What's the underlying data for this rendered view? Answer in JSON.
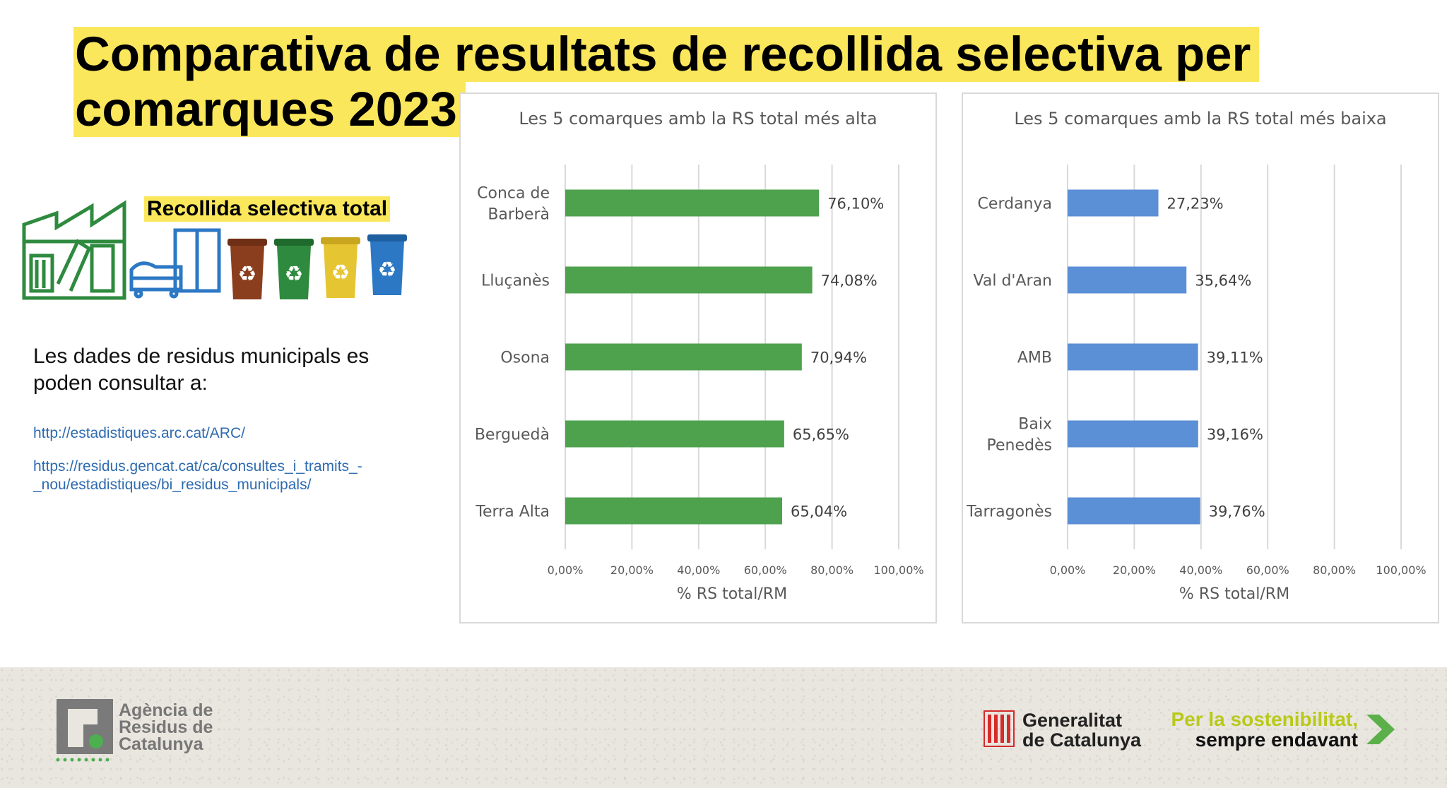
{
  "title": {
    "line1": "Comparativa de resultats de recollida selectiva per",
    "line2": "comarques 2023"
  },
  "sidebar": {
    "heading": "Recollida selectiva total",
    "intro": "Les dades de residus municipals es poden consultar a:",
    "links": [
      "http://estadistiques.arc.cat/ARC/",
      "https://residus.gencat.cat/ca/consultes_i_tramits_-_nou/estadistiques/bi_residus_municipals/"
    ],
    "icons": [
      "recycling-plant-icon",
      "bulky-waste-furniture-icon",
      "organic-bin-icon",
      "glass-bin-icon",
      "packaging-bin-icon",
      "paper-bin-icon"
    ],
    "bin_colors": [
      "#8b3e1d",
      "#2e8a3e",
      "#e6c532",
      "#2c78c4"
    ]
  },
  "chart_data": [
    {
      "type": "bar",
      "orientation": "horizontal",
      "title": "Les 5 comarques amb la RS total més alta",
      "categories": [
        "Conca de Barberà",
        "Lluçanès",
        "Osona",
        "Berguedà",
        "Terra Alta"
      ],
      "category_lines": [
        [
          "Conca de",
          "Barberà"
        ],
        [
          "Lluçanès"
        ],
        [
          "Osona"
        ],
        [
          "Berguedà"
        ],
        [
          "Terra Alta"
        ]
      ],
      "values": [
        76.1,
        74.08,
        70.94,
        65.65,
        65.04
      ],
      "value_labels": [
        "76,10%",
        "74,08%",
        "70,94%",
        "65,65%",
        "65,04%"
      ],
      "xlabel": "% RS total/RM",
      "xlim": [
        0,
        100
      ],
      "xticks": [
        "0,00%",
        "20,00%",
        "40,00%",
        "60,00%",
        "80,00%",
        "100,00%"
      ],
      "color": "#4ea24e",
      "grid": true
    },
    {
      "type": "bar",
      "orientation": "horizontal",
      "title": "Les 5 comarques amb la RS total més baixa",
      "categories": [
        "Cerdanya",
        "Val d'Aran",
        "AMB",
        "Baix Penedès",
        "Tarragonès"
      ],
      "category_lines": [
        [
          "Cerdanya"
        ],
        [
          "Val d'Aran"
        ],
        [
          "AMB"
        ],
        [
          "Baix",
          "Penedès"
        ],
        [
          "Tarragonès"
        ]
      ],
      "values": [
        27.23,
        35.64,
        39.11,
        39.16,
        39.76
      ],
      "value_labels": [
        "27,23%",
        "35,64%",
        "39,11%",
        "39,16%",
        "39,76%"
      ],
      "xlabel": "% RS total/RM",
      "xlim": [
        0,
        100
      ],
      "xticks": [
        "0,00%",
        "20,00%",
        "40,00%",
        "60,00%",
        "80,00%",
        "100,00%"
      ],
      "color": "#5b8fd6",
      "grid": true
    }
  ],
  "footer": {
    "arc_name": [
      "Agència de",
      "Residus de",
      "Catalunya"
    ],
    "gen_name": [
      "Generalitat",
      "de Catalunya"
    ],
    "slogan": [
      "Per la sostenibilitat,",
      "sempre endavant"
    ],
    "colors": {
      "arc_grey": "#7a7a7a",
      "arc_green": "#4caf50",
      "gen_red": "#d62b2b",
      "slogan_green": "#b8c91a"
    }
  }
}
